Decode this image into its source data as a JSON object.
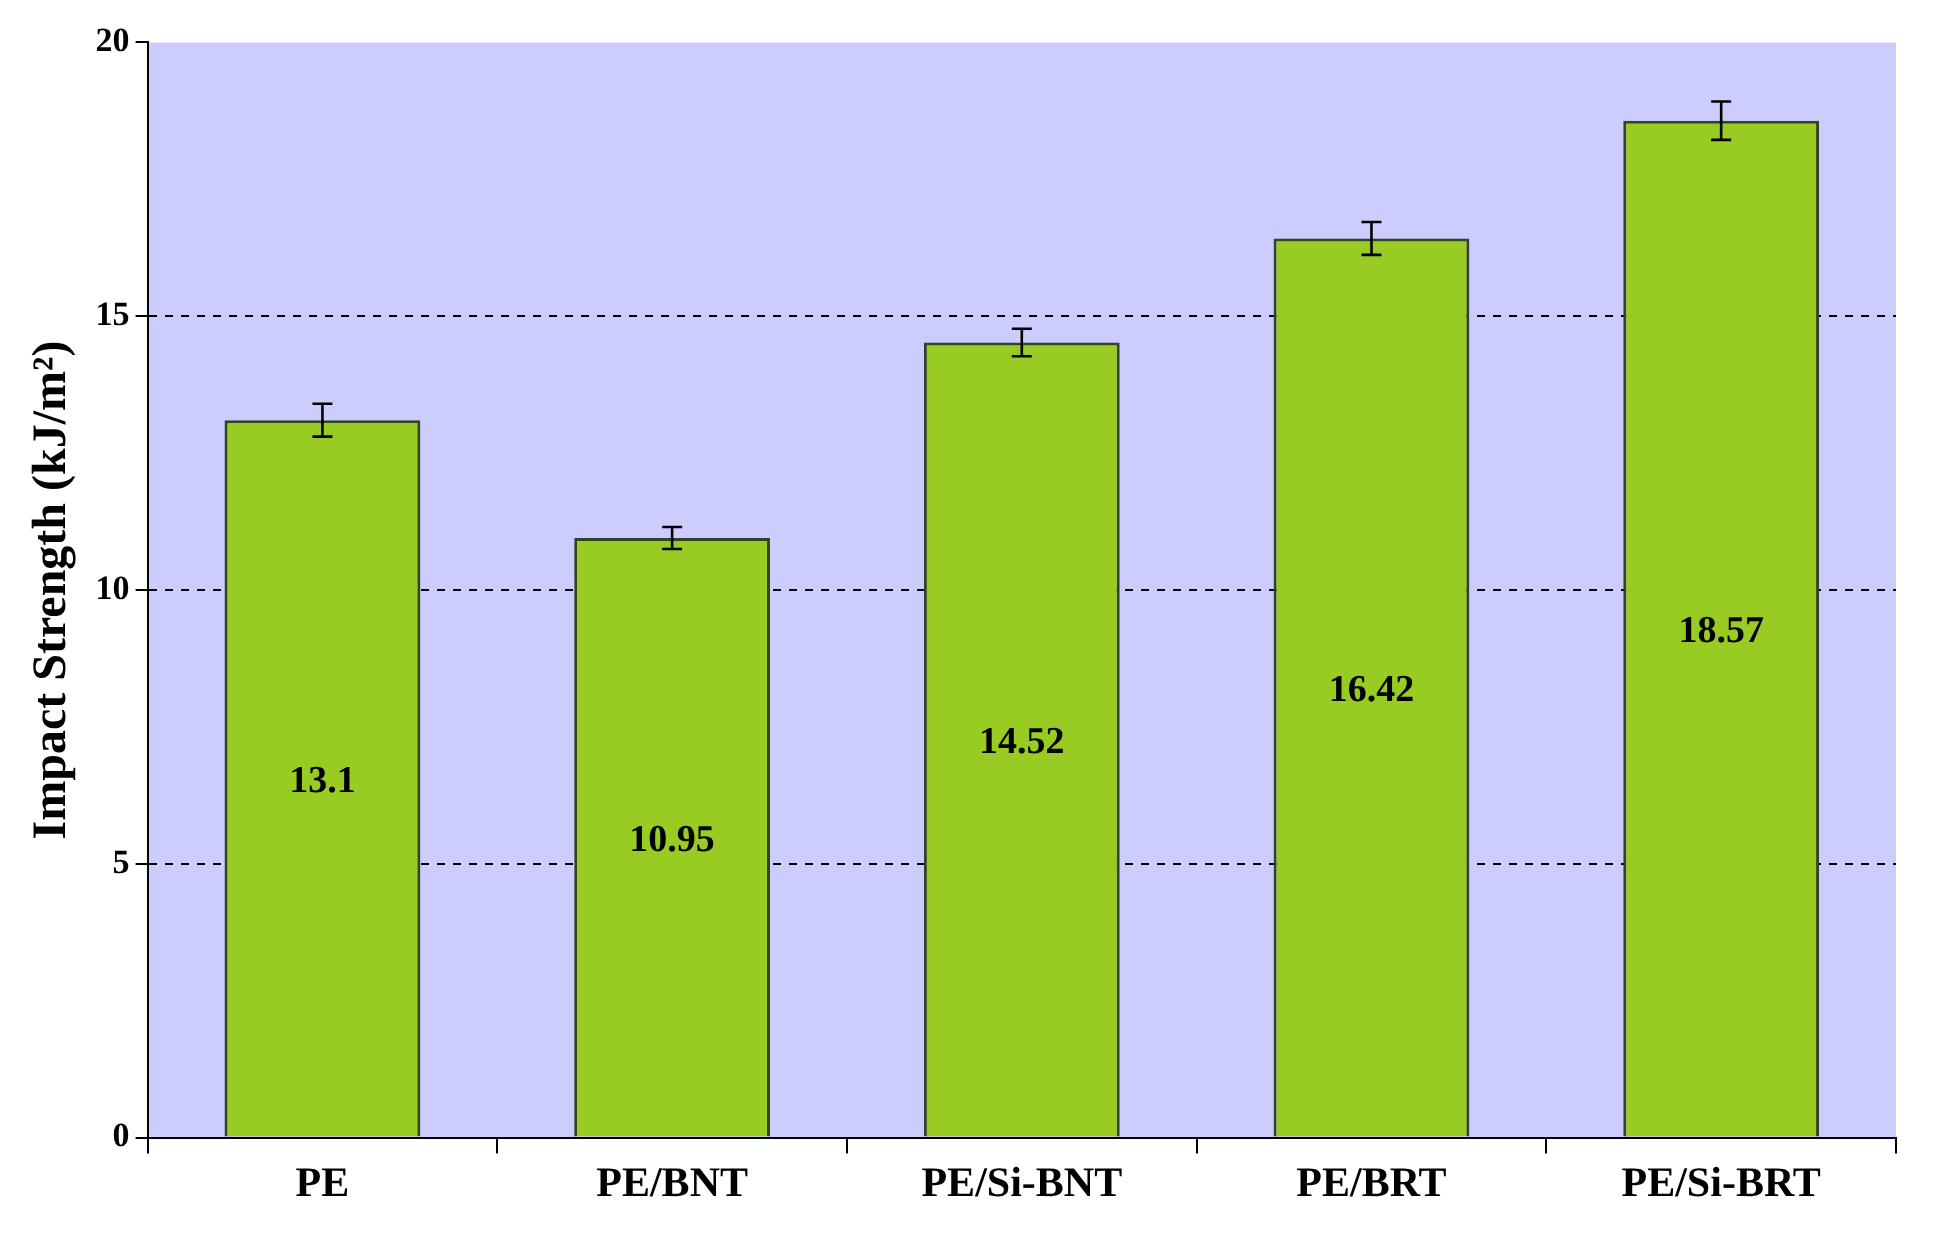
{
  "chart_data": {
    "type": "bar",
    "ylabel": "Impact Strength (kJ/m²)",
    "categories": [
      "PE",
      "PE/BNT",
      "PE/Si-BNT",
      "PE/BRT",
      "PE/Si-BRT"
    ],
    "values": [
      13.1,
      10.95,
      14.52,
      16.42,
      18.57
    ],
    "errors": [
      0.3,
      0.2,
      0.25,
      0.3,
      0.35
    ],
    "color": "#99cc22",
    "ylim": [
      0,
      20
    ],
    "yticks": [
      0,
      5,
      10,
      15,
      20
    ],
    "grid": "y",
    "data_labels": true
  }
}
